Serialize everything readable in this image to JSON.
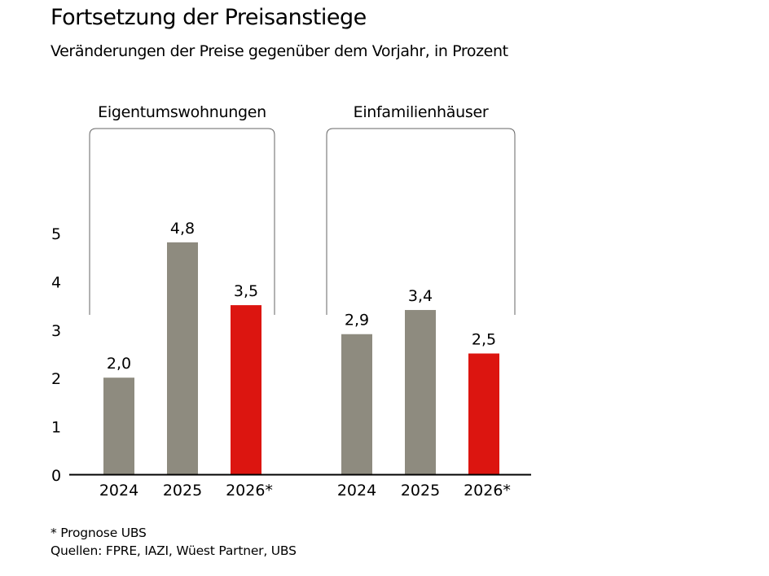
{
  "header": {
    "title": "Fortsetzung der Preisanstiege",
    "subtitle": "Veränderungen der Preise gegenüber dem Vorjahr, in Prozent"
  },
  "footer": {
    "note": "* Prognose UBS",
    "sources": "Quellen: FPRE, IAZI, Wüest Partner, UBS"
  },
  "colors": {
    "actual": "#8e8b7f",
    "forecast": "#dc1510",
    "axis": "#000000",
    "bracket": "#666666"
  },
  "chart_data": {
    "type": "bar",
    "title": "Fortsetzung der Preisanstiege",
    "subtitle": "Veränderungen der Preise gegenüber dem Vorjahr, in Prozent",
    "xlabel": "",
    "ylabel": "",
    "ylim": [
      0,
      5
    ],
    "yticks": [
      0,
      1,
      2,
      3,
      4,
      5
    ],
    "grid": false,
    "groups": [
      {
        "name": "Eigentumswohnungen",
        "categories": [
          "2024",
          "2025",
          "2026*"
        ],
        "values": [
          2.0,
          4.8,
          3.5
        ],
        "labels": [
          "2,0",
          "4,8",
          "3,5"
        ],
        "forecast": [
          false,
          false,
          true
        ]
      },
      {
        "name": "Einfamilienhäuser",
        "categories": [
          "2024",
          "2025",
          "2026*"
        ],
        "values": [
          2.9,
          3.4,
          2.5
        ],
        "labels": [
          "2,9",
          "3,4",
          "2,5"
        ],
        "forecast": [
          false,
          false,
          true
        ]
      }
    ]
  }
}
